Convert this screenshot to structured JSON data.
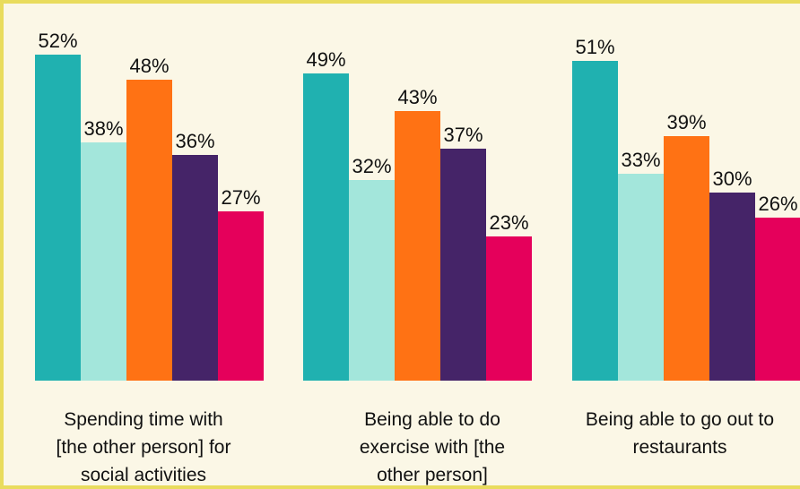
{
  "chart_data": {
    "type": "bar",
    "title": "",
    "xlabel": "",
    "ylabel": "",
    "ylim": [
      0,
      55
    ],
    "grid": false,
    "legend": "none",
    "categories": [
      "Spending time with [the other person] for social activities",
      "Being able to do exercise with [the other person]",
      "Being able to go out to restaurants"
    ],
    "category_lines": [
      [
        "Spending time with",
        "[the other person] for",
        "social activities"
      ],
      [
        "Being able to do",
        "exercise with [the",
        "other person]"
      ],
      [
        "Being able to go out to",
        "restaurants",
        ""
      ]
    ],
    "series": [
      {
        "values": [
          52,
          49,
          51
        ],
        "color": "#20b1b0"
      },
      {
        "values": [
          38,
          32,
          33
        ],
        "color": "#a3e6db"
      },
      {
        "values": [
          48,
          43,
          39
        ],
        "color": "#ff7214"
      },
      {
        "values": [
          36,
          37,
          30
        ],
        "color": "#452468"
      },
      {
        "values": [
          27,
          23,
          26
        ],
        "color": "#e5005b"
      }
    ],
    "value_labels": [
      [
        "52%",
        "49%",
        "51%"
      ],
      [
        "38%",
        "32%",
        "33%"
      ],
      [
        "48%",
        "43%",
        "39%"
      ],
      [
        "36%",
        "37%",
        "30%"
      ],
      [
        "27%",
        "23%",
        "26%"
      ]
    ]
  },
  "colors": {
    "background": "#fbf7e6",
    "frame": "#e9dc5d",
    "text": "#111111"
  }
}
